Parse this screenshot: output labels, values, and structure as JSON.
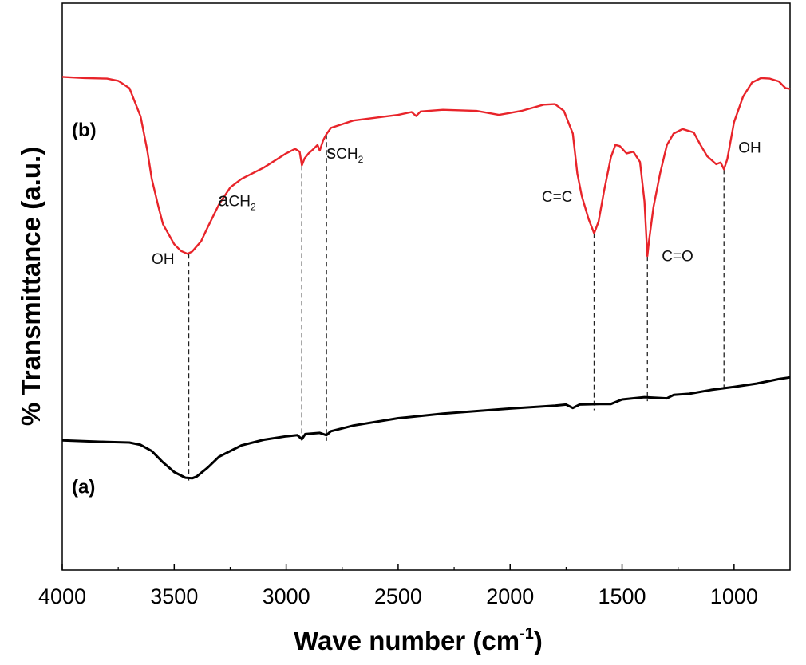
{
  "chart_data": {
    "type": "line",
    "title": "",
    "xlabel": "Wave number (cm",
    "xlabel_sup": "-1",
    "xlabel_close": ")",
    "ylabel": "% Transmittance (a.u.)",
    "xlim": [
      4000,
      750
    ],
    "x_reversed": true,
    "ylim": [
      0,
      100
    ],
    "y_ticks_shown": false,
    "grid": false,
    "xticks": [
      4000,
      3500,
      3000,
      2500,
      2000,
      1500,
      1000
    ],
    "xtick_labels": [
      "4000",
      "3500",
      "3000",
      "2500",
      "2000",
      "1500",
      "1000"
    ],
    "series": [
      {
        "name": "(a)",
        "color": "#000000",
        "points": [
          [
            4000,
            22.9
          ],
          [
            3800,
            22.6
          ],
          [
            3700,
            22.5
          ],
          [
            3650,
            22.1
          ],
          [
            3600,
            21.0
          ],
          [
            3550,
            19.0
          ],
          [
            3500,
            17.3
          ],
          [
            3450,
            16.3
          ],
          [
            3420,
            16.2
          ],
          [
            3400,
            16.5
          ],
          [
            3350,
            18.1
          ],
          [
            3300,
            20.0
          ],
          [
            3200,
            22.0
          ],
          [
            3100,
            23.0
          ],
          [
            3000,
            23.6
          ],
          [
            2950,
            23.8
          ],
          [
            2930,
            23.1
          ],
          [
            2915,
            24.0
          ],
          [
            2850,
            24.2
          ],
          [
            2820,
            23.8
          ],
          [
            2800,
            24.5
          ],
          [
            2700,
            25.5
          ],
          [
            2500,
            26.8
          ],
          [
            2300,
            27.6
          ],
          [
            2000,
            28.5
          ],
          [
            1800,
            29.0
          ],
          [
            1750,
            29.2
          ],
          [
            1720,
            28.6
          ],
          [
            1690,
            29.2
          ],
          [
            1600,
            29.3
          ],
          [
            1550,
            29.3
          ],
          [
            1500,
            30.1
          ],
          [
            1400,
            30.5
          ],
          [
            1300,
            30.3
          ],
          [
            1270,
            30.9
          ],
          [
            1200,
            31.1
          ],
          [
            1100,
            31.8
          ],
          [
            1000,
            32.3
          ],
          [
            900,
            32.9
          ],
          [
            800,
            33.7
          ],
          [
            750,
            34.0
          ]
        ]
      },
      {
        "name": "(b)",
        "color": "#e8242a",
        "points": [
          [
            4000,
            87.0
          ],
          [
            3900,
            86.8
          ],
          [
            3800,
            86.7
          ],
          [
            3750,
            86.3
          ],
          [
            3700,
            85.0
          ],
          [
            3650,
            80.0
          ],
          [
            3620,
            74.0
          ],
          [
            3600,
            69.0
          ],
          [
            3570,
            64.0
          ],
          [
            3550,
            61.0
          ],
          [
            3500,
            57.5
          ],
          [
            3470,
            56.3
          ],
          [
            3440,
            55.8
          ],
          [
            3420,
            56.2
          ],
          [
            3380,
            58.0
          ],
          [
            3350,
            60.5
          ],
          [
            3300,
            64.5
          ],
          [
            3250,
            67.5
          ],
          [
            3200,
            69.0
          ],
          [
            3100,
            71.0
          ],
          [
            3000,
            73.5
          ],
          [
            2960,
            74.3
          ],
          [
            2940,
            73.8
          ],
          [
            2930,
            71.4
          ],
          [
            2918,
            72.6
          ],
          [
            2900,
            73.5
          ],
          [
            2880,
            74.2
          ],
          [
            2860,
            75.0
          ],
          [
            2850,
            74.0
          ],
          [
            2835,
            75.8
          ],
          [
            2820,
            76.9
          ],
          [
            2800,
            78.0
          ],
          [
            2700,
            79.3
          ],
          [
            2500,
            80.3
          ],
          [
            2440,
            80.8
          ],
          [
            2420,
            80.1
          ],
          [
            2400,
            80.9
          ],
          [
            2300,
            81.2
          ],
          [
            2150,
            81.0
          ],
          [
            2050,
            80.3
          ],
          [
            1950,
            81.0
          ],
          [
            1850,
            82.1
          ],
          [
            1800,
            82.2
          ],
          [
            1760,
            81.0
          ],
          [
            1720,
            77.0
          ],
          [
            1700,
            70.0
          ],
          [
            1680,
            66.0
          ],
          [
            1650,
            62.0
          ],
          [
            1625,
            59.4
          ],
          [
            1605,
            61.5
          ],
          [
            1580,
            67.0
          ],
          [
            1550,
            72.8
          ],
          [
            1530,
            75.0
          ],
          [
            1510,
            74.8
          ],
          [
            1480,
            73.5
          ],
          [
            1450,
            73.8
          ],
          [
            1420,
            72.0
          ],
          [
            1400,
            65.0
          ],
          [
            1387,
            55.4
          ],
          [
            1380,
            58.0
          ],
          [
            1360,
            64.0
          ],
          [
            1330,
            70.0
          ],
          [
            1300,
            75.0
          ],
          [
            1270,
            77.0
          ],
          [
            1230,
            77.8
          ],
          [
            1180,
            77.2
          ],
          [
            1150,
            75.0
          ],
          [
            1120,
            73.0
          ],
          [
            1100,
            72.3
          ],
          [
            1080,
            71.6
          ],
          [
            1060,
            71.9
          ],
          [
            1045,
            70.7
          ],
          [
            1030,
            72.5
          ],
          [
            1000,
            79.0
          ],
          [
            960,
            83.5
          ],
          [
            920,
            86.0
          ],
          [
            880,
            86.8
          ],
          [
            840,
            86.7
          ],
          [
            800,
            86.2
          ],
          [
            770,
            85.0
          ],
          [
            750,
            84.9
          ]
        ]
      }
    ],
    "series_labels": [
      {
        "text": "(b)",
        "y": 76.5
      },
      {
        "text": "(a)",
        "y": 13.6
      }
    ],
    "annotations": [
      {
        "prefix": "",
        "text": "OH",
        "sub": "",
        "x": 3435,
        "y": 54.0,
        "anchor": "end",
        "dx": -18
      },
      {
        "prefix": "a",
        "text": "CH",
        "sub": "2",
        "x": 3220,
        "y": 64.2,
        "anchor": "middle",
        "dx": 0
      },
      {
        "prefix": "s",
        "text": "CH",
        "sub": "2",
        "x": 2820,
        "y": 72.6,
        "anchor": "start",
        "dx": 0
      },
      {
        "prefix": "",
        "text": "C=C",
        "sub": "",
        "x": 1790,
        "y": 65.0,
        "anchor": "middle",
        "dx": 0
      },
      {
        "prefix": "",
        "text": "C=O",
        "sub": "",
        "x": 1380,
        "y": 54.5,
        "anchor": "start",
        "dx": 16
      },
      {
        "prefix": "",
        "text": "OH",
        "sub": "",
        "x": 930,
        "y": 73.6,
        "anchor": "middle",
        "dx": 0
      }
    ],
    "dashed_markers": [
      {
        "x": 3435,
        "y_top": 55.8,
        "y_bottom": 15.8
      },
      {
        "x": 2930,
        "y_top": 71.4,
        "y_bottom": 22.8
      },
      {
        "x": 2820,
        "y_top": 76.9,
        "y_bottom": 22.8
      },
      {
        "x": 1625,
        "y_top": 59.4,
        "y_bottom": 28.2
      },
      {
        "x": 1387,
        "y_top": 55.4,
        "y_bottom": 29.8
      },
      {
        "x": 1045,
        "y_top": 70.7,
        "y_bottom": 32.0
      }
    ]
  }
}
